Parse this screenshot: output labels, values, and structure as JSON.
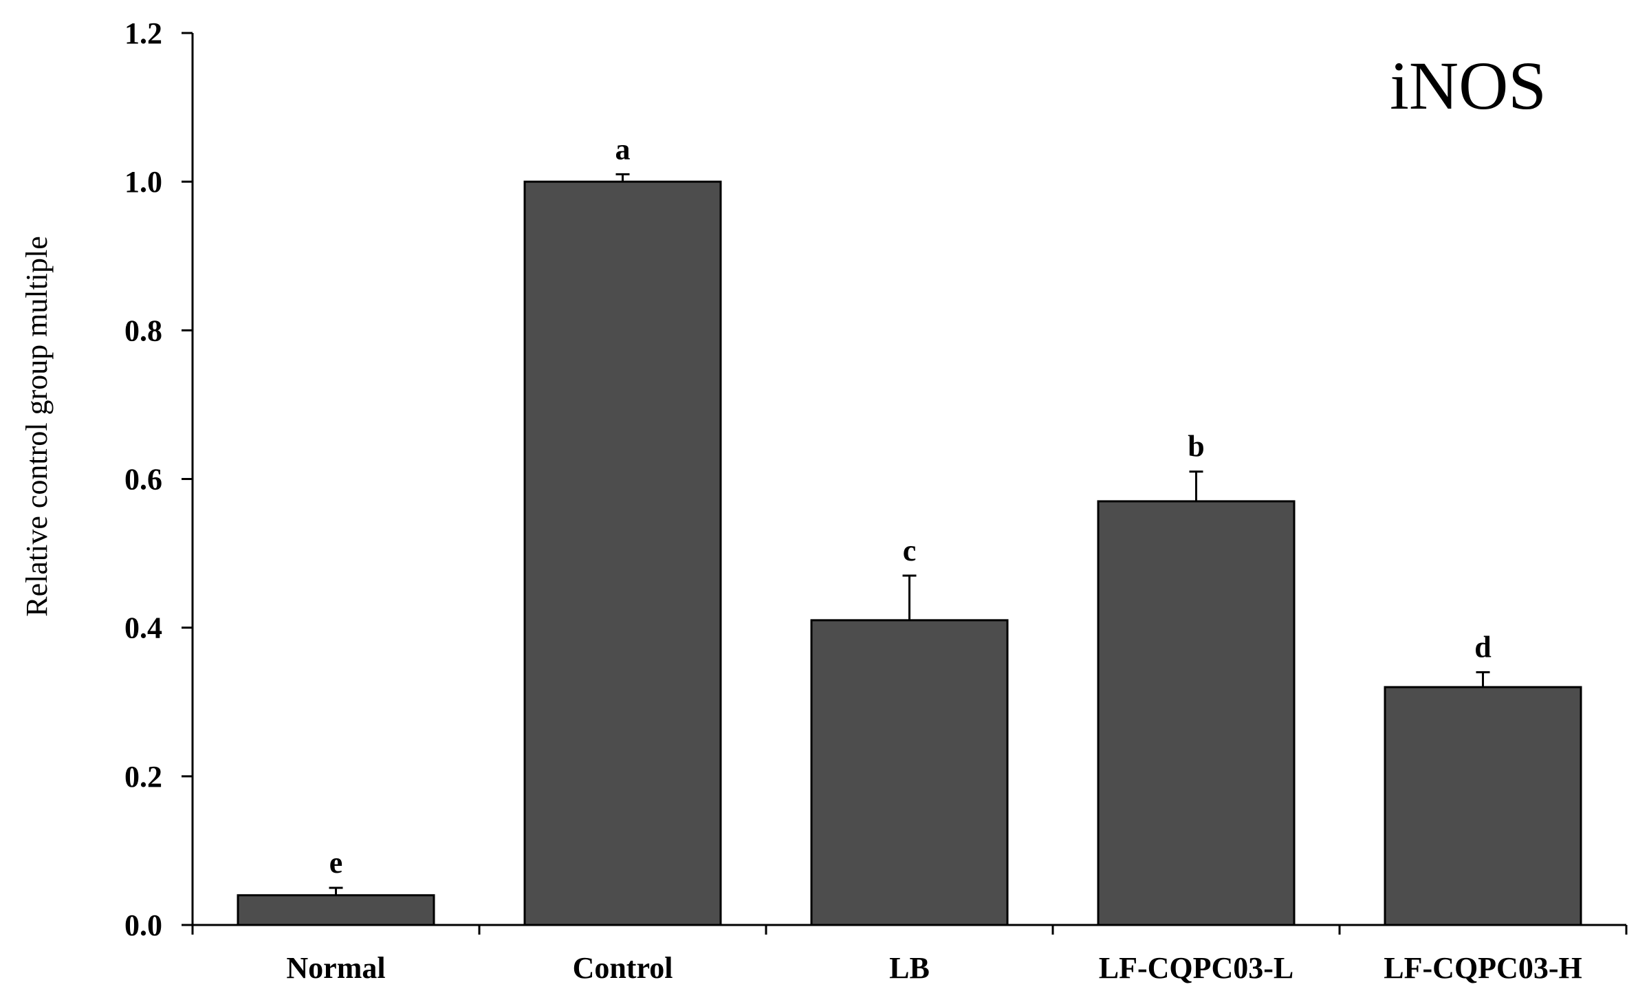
{
  "chart_data": {
    "type": "bar",
    "title": "iNOS",
    "xlabel": "",
    "ylabel": "Relative control group multiple",
    "ylim": [
      0,
      1.2
    ],
    "yticks": [
      "0.0",
      "0.2",
      "0.4",
      "0.6",
      "0.8",
      "1.0",
      "1.2"
    ],
    "categories": [
      "Normal",
      "Control",
      "LB",
      "LF-CQPC03-L",
      "LF-CQPC03-H"
    ],
    "values": [
      0.04,
      1.0,
      0.41,
      0.57,
      0.32
    ],
    "errors": [
      0.01,
      0.01,
      0.06,
      0.04,
      0.02
    ],
    "significance": [
      "e",
      "a",
      "c",
      "b",
      "d"
    ],
    "bar_color": "#4d4d4d"
  }
}
